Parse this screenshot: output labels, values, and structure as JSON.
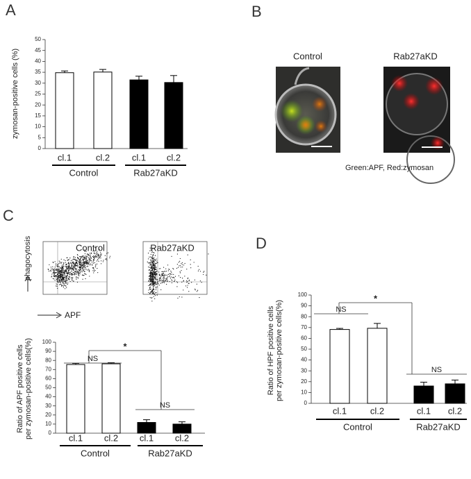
{
  "panel_labels": [
    "A",
    "B",
    "C",
    "D"
  ],
  "chart_data": [
    {
      "type": "bar",
      "ylabel": [
        "zymosan-positive cells (%)"
      ],
      "categories": [
        "cl.1",
        "cl.2",
        "cl.1",
        "cl.2"
      ],
      "groups": [
        "Control",
        "Rab27aKD"
      ],
      "values": [
        34.8,
        35.1,
        31.5,
        30.3
      ],
      "errors": [
        0.8,
        1.2,
        1.7,
        3.2
      ],
      "colors": [
        "#ffffff",
        "#ffffff",
        "#000000",
        "#000000"
      ],
      "ylim": [
        0,
        50
      ],
      "yticks": [
        0,
        5,
        10,
        15,
        20,
        25,
        30,
        35,
        40,
        45,
        50
      ]
    },
    {
      "type": "bar",
      "ylabel": [
        "Ratio of APF positive cells",
        "per zymosan-positive cells(%)"
      ],
      "categories": [
        "cl.1",
        "cl.2",
        "cl.1",
        "cl.2"
      ],
      "groups": [
        "Control",
        "Rab27aKD"
      ],
      "values": [
        75.5,
        76.3,
        11.8,
        10
      ],
      "errors": [
        1.2,
        1.2,
        3,
        2.5
      ],
      "colors": [
        "#ffffff",
        "#ffffff",
        "#000000",
        "#000000"
      ],
      "ylim": [
        0,
        100
      ],
      "yticks": [
        0,
        10,
        20,
        30,
        40,
        50,
        60,
        70,
        80,
        90,
        100
      ],
      "annotations": [
        "NS",
        "*",
        "NS"
      ]
    },
    {
      "type": "bar",
      "ylabel": [
        "Ratio of HPF positive cells",
        "per zymosan-positive cells(%)"
      ],
      "categories": [
        "cl.1",
        "cl.2",
        "cl.1",
        "cl.2"
      ],
      "groups": [
        "Control",
        "Rab27aKD"
      ],
      "values": [
        68.2,
        69.3,
        16,
        18
      ],
      "errors": [
        1,
        4.5,
        3.5,
        3.5
      ],
      "colors": [
        "#ffffff",
        "#ffffff",
        "#000000",
        "#000000"
      ],
      "ylim": [
        0,
        100
      ],
      "yticks": [
        0,
        10,
        20,
        30,
        40,
        50,
        60,
        70,
        80,
        90,
        100
      ],
      "annotations": [
        "NS",
        "*",
        "NS"
      ]
    }
  ],
  "microscopy": {
    "labels": [
      "Control",
      "Rab27aKD"
    ],
    "caption": "Green:APF,   Red:zymosan"
  },
  "flow": {
    "labels": [
      "Control",
      "Rab27aKD"
    ],
    "y_axis": "phagocytosis",
    "x_axis": "APF"
  }
}
